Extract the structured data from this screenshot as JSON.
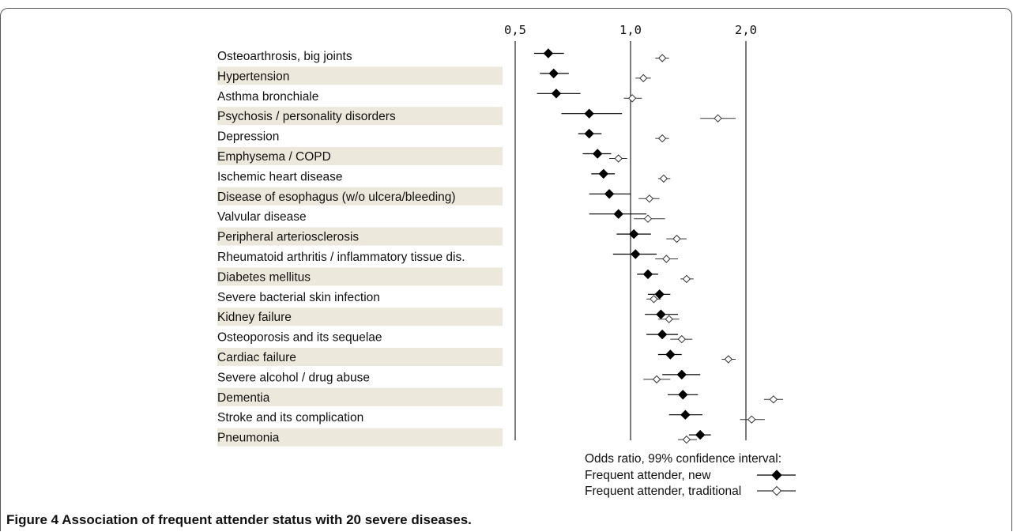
{
  "chart_data": {
    "type": "forest",
    "xscale": "log",
    "xlim": [
      0.5,
      2.0
    ],
    "ticks": [
      {
        "value": 0.5,
        "label": "0,5"
      },
      {
        "value": 1.0,
        "label": "1,0"
      },
      {
        "value": 2.0,
        "label": "2,0"
      }
    ],
    "categories": [
      "Osteoarthrosis, big joints",
      "Hypertension",
      "Asthma bronchiale",
      "Psychosis / personality disorders",
      "Depression",
      "Emphysema / COPD",
      "Ischemic heart disease",
      "Disease of esophagus (w/o ulcera/bleeding)",
      "Valvular disease",
      "Peripheral arteriosclerosis",
      "Rheumatoid arthritis / inflammatory tissue dis.",
      "Diabetes mellitus",
      "Severe bacterial skin infection",
      "Kidney failure",
      "Osteoporosis and its sequelae",
      "Cardiac failure",
      "Severe alcohol / drug abuse",
      "Dementia",
      "Stroke and its complication",
      "Pneumonia"
    ],
    "series": [
      {
        "name": "Frequent attender, new",
        "marker": "filled-diamond",
        "color": "#000000",
        "points": [
          {
            "or": 0.61,
            "lo": 0.56,
            "hi": 0.67
          },
          {
            "or": 0.63,
            "lo": 0.58,
            "hi": 0.69
          },
          {
            "or": 0.64,
            "lo": 0.57,
            "hi": 0.74
          },
          {
            "or": 0.78,
            "lo": 0.66,
            "hi": 0.95
          },
          {
            "or": 0.78,
            "lo": 0.73,
            "hi": 0.84
          },
          {
            "or": 0.82,
            "lo": 0.75,
            "hi": 0.89
          },
          {
            "or": 0.85,
            "lo": 0.79,
            "hi": 0.91
          },
          {
            "or": 0.88,
            "lo": 0.78,
            "hi": 1.0
          },
          {
            "or": 0.93,
            "lo": 0.78,
            "hi": 1.1
          },
          {
            "or": 1.02,
            "lo": 0.92,
            "hi": 1.13
          },
          {
            "or": 1.03,
            "lo": 0.9,
            "hi": 1.17
          },
          {
            "or": 1.11,
            "lo": 1.04,
            "hi": 1.18
          },
          {
            "or": 1.19,
            "lo": 1.11,
            "hi": 1.27
          },
          {
            "or": 1.2,
            "lo": 1.09,
            "hi": 1.33
          },
          {
            "or": 1.21,
            "lo": 1.1,
            "hi": 1.33
          },
          {
            "or": 1.27,
            "lo": 1.18,
            "hi": 1.36
          },
          {
            "or": 1.36,
            "lo": 1.21,
            "hi": 1.52
          },
          {
            "or": 1.37,
            "lo": 1.25,
            "hi": 1.5
          },
          {
            "or": 1.39,
            "lo": 1.26,
            "hi": 1.54
          },
          {
            "or": 1.52,
            "lo": 1.42,
            "hi": 1.62
          }
        ]
      },
      {
        "name": "Frequent attender, traditional",
        "marker": "open-diamond",
        "color": "#333333",
        "points": [
          {
            "or": 1.21,
            "lo": 1.16,
            "hi": 1.26
          },
          {
            "or": 1.08,
            "lo": 1.03,
            "hi": 1.13
          },
          {
            "or": 1.01,
            "lo": 0.96,
            "hi": 1.07
          },
          {
            "or": 1.69,
            "lo": 1.52,
            "hi": 1.88
          },
          {
            "or": 1.21,
            "lo": 1.16,
            "hi": 1.26
          },
          {
            "or": 0.93,
            "lo": 0.88,
            "hi": 0.98
          },
          {
            "or": 1.22,
            "lo": 1.18,
            "hi": 1.27
          },
          {
            "or": 1.12,
            "lo": 1.05,
            "hi": 1.19
          },
          {
            "or": 1.11,
            "lo": 1.02,
            "hi": 1.23
          },
          {
            "or": 1.32,
            "lo": 1.24,
            "hi": 1.4
          },
          {
            "or": 1.24,
            "lo": 1.16,
            "hi": 1.33
          },
          {
            "or": 1.4,
            "lo": 1.35,
            "hi": 1.46
          },
          {
            "or": 1.15,
            "lo": 1.1,
            "hi": 1.2
          },
          {
            "or": 1.26,
            "lo": 1.18,
            "hi": 1.34
          },
          {
            "or": 1.36,
            "lo": 1.27,
            "hi": 1.45
          },
          {
            "or": 1.8,
            "lo": 1.73,
            "hi": 1.88
          },
          {
            "or": 1.17,
            "lo": 1.08,
            "hi": 1.27
          },
          {
            "or": 2.36,
            "lo": 2.23,
            "hi": 2.5
          },
          {
            "or": 2.07,
            "lo": 1.93,
            "hi": 2.24
          },
          {
            "or": 1.4,
            "lo": 1.33,
            "hi": 1.49
          }
        ]
      }
    ],
    "legend": {
      "title": "Odds ratio, 99% confidence interval:",
      "position": "bottom-right"
    },
    "row_shading": "alternate",
    "row_shade_color": "#ede8dc"
  },
  "caption": {
    "label": "Figure 4",
    "text": " Association of frequent attender status with 20 severe diseases."
  }
}
